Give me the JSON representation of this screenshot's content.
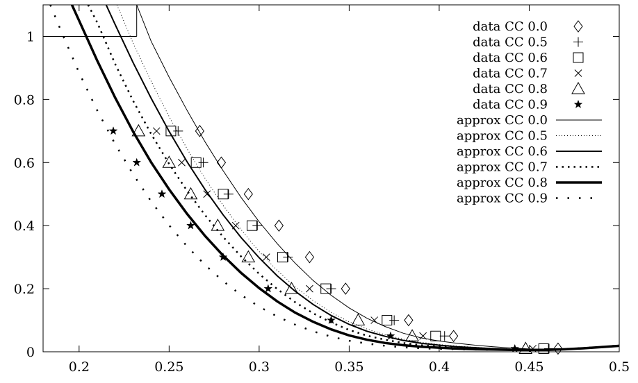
{
  "chart_data": {
    "type": "scatter",
    "title": "",
    "xlabel": "",
    "ylabel": "",
    "xlim": [
      0.18,
      0.5
    ],
    "ylim": [
      0,
      1.1
    ],
    "x_ticks": [
      0.2,
      0.25,
      0.3,
      0.35,
      0.4,
      0.45,
      0.5
    ],
    "x_tick_labels": [
      "0.2",
      "0.25",
      "0.3",
      "0.35",
      "0.4",
      "0.45",
      "0.5"
    ],
    "y_ticks": [
      0,
      0.2,
      0.4,
      0.6,
      0.8,
      1
    ],
    "y_tick_labels": [
      "0",
      "0.2",
      "0.4",
      "0.6",
      "0.8",
      "1"
    ],
    "grid": false,
    "legend_position": "top-right",
    "data_series": [
      {
        "name": "data CC 0.0",
        "marker": "diamond",
        "points": [
          [
            0.267,
            0.7
          ],
          [
            0.279,
            0.6
          ],
          [
            0.294,
            0.5
          ],
          [
            0.311,
            0.4
          ],
          [
            0.328,
            0.3
          ],
          [
            0.348,
            0.2
          ],
          [
            0.383,
            0.1
          ],
          [
            0.408,
            0.05
          ],
          [
            0.466,
            0.01
          ]
        ]
      },
      {
        "name": "data CC 0.5",
        "marker": "plus",
        "points": [
          [
            0.255,
            0.7
          ],
          [
            0.269,
            0.6
          ],
          [
            0.283,
            0.5
          ],
          [
            0.299,
            0.4
          ],
          [
            0.316,
            0.3
          ],
          [
            0.34,
            0.2
          ],
          [
            0.375,
            0.1
          ],
          [
            0.403,
            0.05
          ],
          [
            0.461,
            0.01
          ]
        ]
      },
      {
        "name": "data CC 0.6",
        "marker": "square",
        "points": [
          [
            0.251,
            0.7
          ],
          [
            0.265,
            0.6
          ],
          [
            0.28,
            0.5
          ],
          [
            0.296,
            0.4
          ],
          [
            0.313,
            0.3
          ],
          [
            0.337,
            0.2
          ],
          [
            0.371,
            0.1
          ],
          [
            0.398,
            0.05
          ],
          [
            0.458,
            0.01
          ]
        ]
      },
      {
        "name": "data CC 0.7",
        "marker": "cross",
        "points": [
          [
            0.243,
            0.7
          ],
          [
            0.257,
            0.6
          ],
          [
            0.271,
            0.5
          ],
          [
            0.287,
            0.4
          ],
          [
            0.304,
            0.3
          ],
          [
            0.328,
            0.2
          ],
          [
            0.364,
            0.1
          ],
          [
            0.391,
            0.05
          ],
          [
            0.452,
            0.01
          ]
        ]
      },
      {
        "name": "data CC 0.8",
        "marker": "triangle",
        "points": [
          [
            0.233,
            0.7
          ],
          [
            0.25,
            0.6
          ],
          [
            0.262,
            0.5
          ],
          [
            0.277,
            0.4
          ],
          [
            0.294,
            0.3
          ],
          [
            0.318,
            0.2
          ],
          [
            0.355,
            0.1
          ],
          [
            0.385,
            0.05
          ],
          [
            0.448,
            0.01
          ]
        ]
      },
      {
        "name": "data CC 0.9",
        "marker": "star",
        "points": [
          [
            0.219,
            0.7
          ],
          [
            0.232,
            0.6
          ],
          [
            0.246,
            0.5
          ],
          [
            0.262,
            0.4
          ],
          [
            0.28,
            0.3
          ],
          [
            0.305,
            0.2
          ],
          [
            0.34,
            0.1
          ],
          [
            0.373,
            0.05
          ],
          [
            0.442,
            0.01
          ]
        ]
      }
    ],
    "approx_series": [
      {
        "name": "approx CC 0.0",
        "style": "thin-solid",
        "points": [
          [
            0.232,
            1.0
          ],
          [
            0.232,
            1.1
          ],
          [
            0.24,
            0.985
          ],
          [
            0.25,
            0.871
          ],
          [
            0.26,
            0.765
          ],
          [
            0.27,
            0.665
          ],
          [
            0.28,
            0.574
          ],
          [
            0.29,
            0.489
          ],
          [
            0.3,
            0.412
          ],
          [
            0.31,
            0.343
          ],
          [
            0.32,
            0.281
          ],
          [
            0.33,
            0.226
          ],
          [
            0.34,
            0.179
          ],
          [
            0.35,
            0.139
          ],
          [
            0.36,
            0.106
          ],
          [
            0.37,
            0.08
          ],
          [
            0.38,
            0.059
          ],
          [
            0.39,
            0.044
          ],
          [
            0.4,
            0.034
          ],
          [
            0.41,
            0.027
          ],
          [
            0.42,
            0.021
          ],
          [
            0.43,
            0.016
          ],
          [
            0.44,
            0.012
          ],
          [
            0.45,
            0.009
          ],
          [
            0.46,
            0.008
          ],
          [
            0.47,
            0.009
          ],
          [
            0.48,
            0.012
          ],
          [
            0.49,
            0.016
          ],
          [
            0.5,
            0.02
          ]
        ]
      },
      {
        "name": "approx CC 0.5",
        "style": "fine-dotted",
        "points": [
          [
            0.221,
            1.1
          ],
          [
            0.23,
            0.979
          ],
          [
            0.24,
            0.858
          ],
          [
            0.25,
            0.746
          ],
          [
            0.26,
            0.643
          ],
          [
            0.27,
            0.549
          ],
          [
            0.28,
            0.464
          ],
          [
            0.29,
            0.387
          ],
          [
            0.3,
            0.318
          ],
          [
            0.31,
            0.258
          ],
          [
            0.32,
            0.206
          ],
          [
            0.33,
            0.162
          ],
          [
            0.34,
            0.125
          ],
          [
            0.35,
            0.095
          ],
          [
            0.36,
            0.072
          ],
          [
            0.37,
            0.054
          ],
          [
            0.38,
            0.04
          ],
          [
            0.39,
            0.03
          ],
          [
            0.4,
            0.023
          ],
          [
            0.41,
            0.018
          ],
          [
            0.42,
            0.014
          ],
          [
            0.43,
            0.011
          ],
          [
            0.44,
            0.009
          ],
          [
            0.45,
            0.008
          ],
          [
            0.46,
            0.007
          ],
          [
            0.47,
            0.008
          ],
          [
            0.48,
            0.011
          ],
          [
            0.49,
            0.015
          ],
          [
            0.5,
            0.019
          ]
        ]
      },
      {
        "name": "approx CC 0.6",
        "style": "medium-solid",
        "points": [
          [
            0.215,
            1.1
          ],
          [
            0.22,
            1.038
          ],
          [
            0.23,
            0.917
          ],
          [
            0.24,
            0.804
          ],
          [
            0.25,
            0.699
          ],
          [
            0.26,
            0.602
          ],
          [
            0.27,
            0.514
          ],
          [
            0.28,
            0.434
          ],
          [
            0.29,
            0.362
          ],
          [
            0.3,
            0.298
          ],
          [
            0.31,
            0.241
          ],
          [
            0.32,
            0.192
          ],
          [
            0.33,
            0.15
          ],
          [
            0.34,
            0.115
          ],
          [
            0.35,
            0.087
          ],
          [
            0.36,
            0.065
          ],
          [
            0.37,
            0.049
          ],
          [
            0.38,
            0.036
          ],
          [
            0.39,
            0.027
          ],
          [
            0.4,
            0.021
          ],
          [
            0.41,
            0.016
          ],
          [
            0.42,
            0.013
          ],
          [
            0.43,
            0.01
          ],
          [
            0.44,
            0.008
          ],
          [
            0.45,
            0.007
          ],
          [
            0.46,
            0.007
          ],
          [
            0.47,
            0.008
          ],
          [
            0.48,
            0.011
          ],
          [
            0.49,
            0.015
          ],
          [
            0.5,
            0.019
          ]
        ]
      },
      {
        "name": "approx CC 0.7",
        "style": "heavy-dotted",
        "points": [
          [
            0.205,
            1.1
          ],
          [
            0.21,
            1.045
          ],
          [
            0.22,
            0.913
          ],
          [
            0.23,
            0.796
          ],
          [
            0.24,
            0.691
          ],
          [
            0.25,
            0.596
          ],
          [
            0.26,
            0.51
          ],
          [
            0.27,
            0.433
          ],
          [
            0.28,
            0.364
          ],
          [
            0.29,
            0.302
          ],
          [
            0.3,
            0.247
          ],
          [
            0.31,
            0.199
          ],
          [
            0.32,
            0.157
          ],
          [
            0.33,
            0.122
          ],
          [
            0.34,
            0.093
          ],
          [
            0.35,
            0.069
          ],
          [
            0.36,
            0.051
          ],
          [
            0.37,
            0.038
          ],
          [
            0.38,
            0.028
          ],
          [
            0.39,
            0.021
          ],
          [
            0.4,
            0.016
          ],
          [
            0.41,
            0.013
          ],
          [
            0.42,
            0.01
          ],
          [
            0.43,
            0.008
          ],
          [
            0.44,
            0.007
          ],
          [
            0.45,
            0.006
          ],
          [
            0.46,
            0.006
          ],
          [
            0.47,
            0.008
          ],
          [
            0.48,
            0.011
          ],
          [
            0.49,
            0.015
          ],
          [
            0.5,
            0.019
          ]
        ]
      },
      {
        "name": "approx CC 0.8",
        "style": "thick-solid",
        "points": [
          [
            0.196,
            1.1
          ],
          [
            0.2,
            1.05
          ],
          [
            0.21,
            0.924
          ],
          [
            0.22,
            0.806
          ],
          [
            0.23,
            0.698
          ],
          [
            0.24,
            0.601
          ],
          [
            0.25,
            0.515
          ],
          [
            0.26,
            0.437
          ],
          [
            0.27,
            0.367
          ],
          [
            0.28,
            0.305
          ],
          [
            0.29,
            0.25
          ],
          [
            0.3,
            0.202
          ],
          [
            0.31,
            0.16
          ],
          [
            0.32,
            0.124
          ],
          [
            0.33,
            0.095
          ],
          [
            0.34,
            0.071
          ],
          [
            0.35,
            0.052
          ],
          [
            0.36,
            0.038
          ],
          [
            0.37,
            0.028
          ],
          [
            0.38,
            0.021
          ],
          [
            0.39,
            0.016
          ],
          [
            0.4,
            0.013
          ],
          [
            0.41,
            0.01
          ],
          [
            0.42,
            0.008
          ],
          [
            0.43,
            0.007
          ],
          [
            0.44,
            0.006
          ],
          [
            0.45,
            0.006
          ],
          [
            0.46,
            0.006
          ],
          [
            0.47,
            0.008
          ],
          [
            0.48,
            0.011
          ],
          [
            0.49,
            0.015
          ],
          [
            0.5,
            0.019
          ]
        ]
      },
      {
        "name": "approx CC 0.9",
        "style": "sparse-dotted",
        "points": [
          [
            0.184,
            1.1
          ],
          [
            0.19,
            1.017
          ],
          [
            0.2,
            0.885
          ],
          [
            0.21,
            0.766
          ],
          [
            0.22,
            0.659
          ],
          [
            0.23,
            0.563
          ],
          [
            0.24,
            0.477
          ],
          [
            0.25,
            0.401
          ],
          [
            0.26,
            0.334
          ],
          [
            0.27,
            0.275
          ],
          [
            0.28,
            0.224
          ],
          [
            0.29,
            0.18
          ],
          [
            0.3,
            0.143
          ],
          [
            0.31,
            0.112
          ],
          [
            0.32,
            0.086
          ],
          [
            0.33,
            0.065
          ],
          [
            0.34,
            0.048
          ],
          [
            0.35,
            0.035
          ],
          [
            0.36,
            0.026
          ],
          [
            0.37,
            0.019
          ],
          [
            0.38,
            0.014
          ],
          [
            0.39,
            0.011
          ],
          [
            0.4,
            0.009
          ],
          [
            0.41,
            0.008
          ],
          [
            0.42,
            0.007
          ],
          [
            0.43,
            0.006
          ],
          [
            0.44,
            0.006
          ],
          [
            0.45,
            0.006
          ],
          [
            0.46,
            0.007
          ],
          [
            0.47,
            0.009
          ],
          [
            0.48,
            0.012
          ],
          [
            0.49,
            0.016
          ],
          [
            0.5,
            0.02
          ]
        ]
      }
    ],
    "reference_lines": [
      {
        "y": 1.0,
        "x_from": 0.18,
        "x_to": 0.232
      }
    ]
  }
}
